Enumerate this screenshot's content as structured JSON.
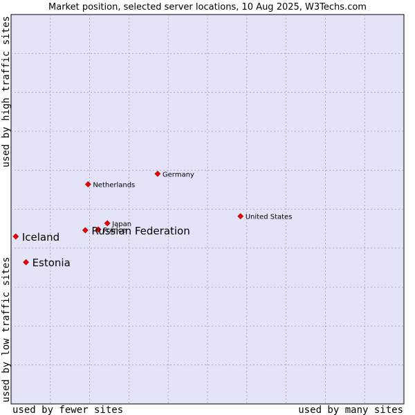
{
  "chart_data": {
    "type": "scatter",
    "title": "Market position, selected server locations, 10 Aug 2025, W3Techs.com",
    "xlabel_left": "used by fewer sites",
    "xlabel_right": "used by many sites",
    "ylabel_bottom": "used by low traffic sites",
    "ylabel_top": "used by high traffic sites",
    "xlim": [
      0,
      100
    ],
    "ylim": [
      0,
      100
    ],
    "grid": true,
    "background_color": "#e4e4f8",
    "point_color": "#ee0000",
    "points": [
      {
        "label": "Germany",
        "x": 37.3,
        "y": 59.1,
        "emphasis": false
      },
      {
        "label": "Netherlands",
        "x": 19.6,
        "y": 56.4,
        "emphasis": false
      },
      {
        "label": "United States",
        "x": 58.4,
        "y": 48.2,
        "emphasis": false
      },
      {
        "label": "Japan",
        "x": 24.5,
        "y": 46.4,
        "emphasis": false
      },
      {
        "label": "France",
        "x": 22.2,
        "y": 44.8,
        "emphasis": false
      },
      {
        "label": "Russian Federation",
        "x": 18.9,
        "y": 44.6,
        "emphasis": true
      },
      {
        "label": "Iceland",
        "x": 1.2,
        "y": 43.0,
        "emphasis": true
      },
      {
        "label": "Estonia",
        "x": 3.8,
        "y": 36.4,
        "emphasis": true
      }
    ]
  }
}
